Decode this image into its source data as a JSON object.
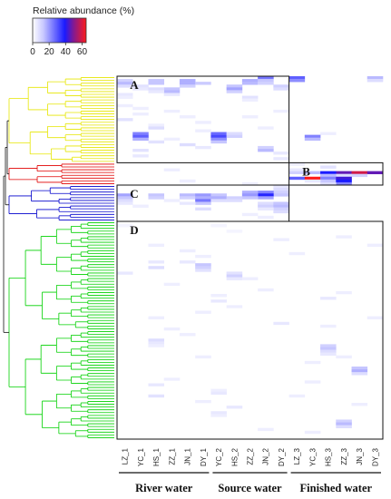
{
  "chart_data": {
    "type": "heatmap",
    "legend": {
      "title": "Relative abundance (%)",
      "ticks": [
        0,
        20,
        40,
        60
      ],
      "range": [
        0,
        65
      ],
      "colors": [
        "#ffffff",
        "#1a1aff",
        "#ff1a1a"
      ]
    },
    "samples": [
      "LZ_1",
      "YC_1",
      "HS_1",
      "ZZ_1",
      "JN_1",
      "DY_1",
      "YC_2",
      "HS_2",
      "ZZ_2",
      "JN_2",
      "DY_2",
      "LZ_3",
      "YC_3",
      "HS_3",
      "ZZ_3",
      "JN_3",
      "DY_3"
    ],
    "groups": [
      {
        "label": "River water",
        "columns": [
          0,
          5
        ]
      },
      {
        "label": "Source water",
        "columns": [
          6,
          10
        ]
      },
      {
        "label": "Finished water",
        "columns": [
          11,
          16
        ]
      }
    ],
    "row_count": 130,
    "clusters": [
      {
        "label": "A",
        "rows": [
          0,
          30
        ],
        "columns": [
          0,
          10
        ],
        "dendrogram_color": "#e6e600"
      },
      {
        "label": "B",
        "rows": [
          31,
          38
        ],
        "columns": [
          11,
          16
        ],
        "dendrogram_color": "#e00000"
      },
      {
        "label": "C",
        "rows": [
          39,
          51
        ],
        "columns": [
          0,
          10
        ],
        "dendrogram_color": "#0000cc"
      },
      {
        "label": "D",
        "rows": [
          52,
          129
        ],
        "columns": [
          0,
          16
        ],
        "dendrogram_color": "#00d000"
      }
    ],
    "cells": [
      [
        0,
        11,
        28
      ],
      [
        1,
        11,
        20
      ],
      [
        0,
        16,
        12
      ],
      [
        1,
        16,
        6
      ],
      [
        1,
        0,
        8
      ],
      [
        2,
        0,
        12
      ],
      [
        3,
        0,
        6
      ],
      [
        1,
        2,
        10
      ],
      [
        2,
        2,
        10
      ],
      [
        1,
        4,
        14
      ],
      [
        2,
        4,
        14
      ],
      [
        3,
        4,
        8
      ],
      [
        2,
        5,
        9
      ],
      [
        3,
        1,
        5
      ],
      [
        4,
        1,
        4
      ],
      [
        1,
        8,
        14
      ],
      [
        2,
        8,
        12
      ],
      [
        3,
        7,
        10
      ],
      [
        0,
        9,
        24
      ],
      [
        1,
        9,
        10
      ],
      [
        2,
        9,
        8
      ],
      [
        4,
        3,
        10
      ],
      [
        5,
        3,
        12
      ],
      [
        6,
        3,
        4
      ],
      [
        4,
        7,
        16
      ],
      [
        5,
        7,
        8
      ],
      [
        3,
        10,
        8
      ],
      [
        4,
        10,
        6
      ],
      [
        4,
        2,
        6
      ],
      [
        5,
        2,
        4
      ],
      [
        7,
        8,
        5
      ],
      [
        8,
        8,
        3
      ],
      [
        6,
        0,
        4
      ],
      [
        7,
        0,
        3
      ],
      [
        10,
        0,
        3
      ],
      [
        11,
        1,
        3
      ],
      [
        12,
        3,
        3
      ],
      [
        13,
        1,
        3
      ],
      [
        14,
        4,
        3
      ],
      [
        15,
        0,
        5
      ],
      [
        16,
        5,
        3
      ],
      [
        17,
        2,
        3
      ],
      [
        18,
        2,
        6
      ],
      [
        14,
        8,
        3
      ],
      [
        12,
        10,
        3
      ],
      [
        20,
        1,
        22
      ],
      [
        21,
        1,
        28
      ],
      [
        22,
        1,
        14
      ],
      [
        20,
        6,
        26
      ],
      [
        21,
        6,
        32
      ],
      [
        22,
        6,
        20
      ],
      [
        23,
        6,
        10
      ],
      [
        20,
        7,
        6
      ],
      [
        21,
        7,
        8
      ],
      [
        22,
        3,
        3
      ],
      [
        23,
        2,
        5
      ],
      [
        20,
        13,
        3
      ],
      [
        21,
        12,
        22
      ],
      [
        22,
        12,
        12
      ],
      [
        25,
        9,
        8
      ],
      [
        26,
        9,
        12
      ],
      [
        27,
        10,
        4
      ],
      [
        24,
        4,
        6
      ],
      [
        25,
        5,
        4
      ],
      [
        26,
        1,
        5
      ],
      [
        28,
        1,
        4
      ],
      [
        29,
        10,
        4
      ],
      [
        18,
        9,
        3
      ],
      [
        19,
        5,
        3
      ],
      [
        31,
        11,
        3
      ],
      [
        32,
        13,
        5
      ],
      [
        33,
        11,
        4
      ],
      [
        34,
        14,
        48
      ],
      [
        34,
        15,
        60
      ],
      [
        34,
        16,
        48
      ],
      [
        34,
        12,
        12
      ],
      [
        34,
        13,
        40
      ],
      [
        34,
        11,
        8
      ],
      [
        35,
        14,
        6
      ],
      [
        35,
        15,
        8
      ],
      [
        35,
        13,
        12
      ],
      [
        36,
        11,
        28
      ],
      [
        36,
        12,
        65
      ],
      [
        36,
        13,
        22
      ],
      [
        37,
        13,
        10
      ],
      [
        36,
        14,
        44
      ],
      [
        37,
        14,
        40
      ],
      [
        38,
        14,
        22
      ],
      [
        37,
        12,
        4
      ],
      [
        38,
        13,
        6
      ],
      [
        39,
        10,
        4
      ],
      [
        40,
        10,
        6
      ],
      [
        41,
        10,
        8
      ],
      [
        42,
        10,
        10
      ],
      [
        41,
        9,
        22
      ],
      [
        42,
        9,
        38
      ],
      [
        43,
        9,
        16
      ],
      [
        41,
        8,
        14
      ],
      [
        42,
        8,
        18
      ],
      [
        43,
        8,
        10
      ],
      [
        42,
        0,
        16
      ],
      [
        43,
        0,
        10
      ],
      [
        44,
        0,
        6
      ],
      [
        42,
        2,
        10
      ],
      [
        43,
        2,
        8
      ],
      [
        42,
        4,
        12
      ],
      [
        43,
        4,
        8
      ],
      [
        42,
        5,
        18
      ],
      [
        43,
        5,
        14
      ],
      [
        44,
        5,
        24
      ],
      [
        45,
        5,
        10
      ],
      [
        42,
        6,
        10
      ],
      [
        43,
        6,
        14
      ],
      [
        44,
        6,
        6
      ],
      [
        43,
        7,
        8
      ],
      [
        44,
        7,
        6
      ],
      [
        45,
        9,
        6
      ],
      [
        46,
        9,
        8
      ],
      [
        45,
        10,
        10
      ],
      [
        46,
        10,
        12
      ],
      [
        47,
        10,
        8
      ],
      [
        48,
        10,
        6
      ],
      [
        47,
        5,
        6
      ],
      [
        45,
        0,
        4
      ],
      [
        46,
        1,
        3
      ],
      [
        44,
        3,
        3
      ],
      [
        47,
        9,
        4
      ],
      [
        49,
        8,
        3
      ],
      [
        50,
        9,
        3
      ],
      [
        45,
        4,
        4
      ],
      [
        53,
        0,
        2
      ],
      [
        53,
        6,
        2
      ],
      [
        55,
        7,
        2
      ],
      [
        58,
        10,
        3
      ],
      [
        60,
        2,
        3
      ],
      [
        62,
        4,
        3
      ],
      [
        64,
        5,
        3
      ],
      [
        66,
        4,
        4
      ],
      [
        67,
        5,
        10
      ],
      [
        68,
        5,
        8
      ],
      [
        69,
        5,
        5
      ],
      [
        70,
        7,
        5
      ],
      [
        71,
        7,
        8
      ],
      [
        72,
        7,
        4
      ],
      [
        66,
        2,
        4
      ],
      [
        68,
        2,
        6
      ],
      [
        70,
        0,
        4
      ],
      [
        72,
        8,
        3
      ],
      [
        74,
        3,
        3
      ],
      [
        76,
        9,
        3
      ],
      [
        78,
        6,
        3
      ],
      [
        80,
        6,
        4
      ],
      [
        82,
        7,
        3
      ],
      [
        84,
        5,
        3
      ],
      [
        86,
        2,
        3
      ],
      [
        88,
        10,
        4
      ],
      [
        90,
        3,
        3
      ],
      [
        92,
        4,
        3
      ],
      [
        94,
        2,
        6
      ],
      [
        95,
        2,
        4
      ],
      [
        96,
        2,
        3
      ],
      [
        96,
        13,
        8
      ],
      [
        97,
        13,
        10
      ],
      [
        98,
        13,
        6
      ],
      [
        99,
        13,
        4
      ],
      [
        100,
        14,
        3
      ],
      [
        104,
        15,
        10
      ],
      [
        105,
        15,
        14
      ],
      [
        106,
        15,
        6
      ],
      [
        108,
        3,
        3
      ],
      [
        110,
        2,
        4
      ],
      [
        112,
        6,
        3
      ],
      [
        113,
        6,
        4
      ],
      [
        114,
        2,
        5
      ],
      [
        114,
        11,
        3
      ],
      [
        116,
        5,
        3
      ],
      [
        118,
        7,
        4
      ],
      [
        120,
        6,
        4
      ],
      [
        121,
        6,
        3
      ],
      [
        123,
        14,
        8
      ],
      [
        124,
        14,
        12
      ],
      [
        125,
        14,
        6
      ],
      [
        126,
        9,
        3
      ],
      [
        127,
        12,
        3
      ],
      [
        102,
        12,
        3
      ],
      [
        100,
        5,
        3
      ],
      [
        77,
        14,
        3
      ],
      [
        79,
        13,
        4
      ],
      [
        57,
        14,
        3
      ],
      [
        60,
        16,
        3
      ],
      [
        63,
        11,
        3
      ],
      [
        86,
        16,
        3
      ],
      [
        89,
        13,
        3
      ],
      [
        109,
        12,
        3
      ],
      [
        117,
        15,
        3
      ],
      [
        33,
        3,
        3
      ],
      [
        37,
        4,
        3
      ],
      [
        38,
        8,
        3
      ]
    ]
  }
}
